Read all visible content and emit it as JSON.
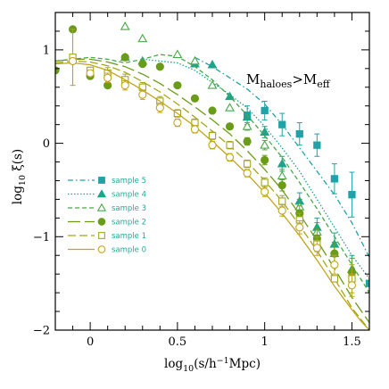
{
  "chart_data": {
    "type": "scatter",
    "xlabel_main": "log",
    "xlabel_sub": "10",
    "xlabel_rest": "(s/h",
    "xlabel_sup": "−1",
    "xlabel_end": "Mpc)",
    "ylabel_main": "log",
    "ylabel_sub": "10",
    "ylabel_rest": " ξ(s)",
    "annotation": {
      "main": "M",
      "sub1": "haloes",
      "mid": ">M",
      "sub2": "eff"
    },
    "xlim": [
      -0.2,
      1.6
    ],
    "ylim": [
      -2,
      1.4
    ],
    "x_ticks": [
      0,
      0.5,
      1,
      1.5
    ],
    "x_tick_labels": [
      "0",
      "0.5",
      "1",
      "1.5"
    ],
    "y_ticks": [
      -2,
      -1,
      0,
      1
    ],
    "y_tick_labels": [
      "−2",
      "−1",
      "0",
      "1"
    ],
    "legend_position": "lower-left",
    "series": [
      {
        "name": "sample 5",
        "color": "#1fa3a8",
        "marker": "square-filled",
        "line": "dash-dot",
        "points": [
          {
            "x": 0.9,
            "y": 0.3,
            "e": 0.1
          },
          {
            "x": 1.0,
            "y": 0.35,
            "e": 0.1
          },
          {
            "x": 1.1,
            "y": 0.2,
            "e": 0.12
          },
          {
            "x": 1.2,
            "y": 0.1,
            "e": 0.12
          },
          {
            "x": 1.3,
            "y": -0.02,
            "e": 0.12
          },
          {
            "x": 1.4,
            "y": -0.38,
            "e": 0.16
          },
          {
            "x": 1.5,
            "y": -0.55,
            "e": 0.24
          },
          {
            "x": 1.6,
            "y": -1.5,
            "e": 0.0
          }
        ],
        "model": {
          "x": [
            0.6,
            0.7,
            0.8,
            0.9,
            1.0,
            1.1,
            1.2,
            1.3,
            1.4,
            1.5,
            1.6
          ],
          "y": [
            0.92,
            0.82,
            0.7,
            0.58,
            0.42,
            0.2,
            -0.05,
            -0.3,
            -0.55,
            -0.85,
            -1.22
          ]
        }
      },
      {
        "name": "sample 4",
        "color": "#1fa38a",
        "marker": "triangle-filled",
        "line": "dotted",
        "points": [
          {
            "x": 0.2,
            "y": 0.92,
            "e": 0.0
          },
          {
            "x": 0.3,
            "y": 0.88,
            "e": 0.0
          },
          {
            "x": 0.6,
            "y": 0.85,
            "e": 0.0
          },
          {
            "x": 0.7,
            "y": 0.84,
            "e": 0.0
          },
          {
            "x": 0.8,
            "y": 0.5,
            "e": 0.0
          },
          {
            "x": 0.9,
            "y": 0.28,
            "e": 0.0
          },
          {
            "x": 1.0,
            "y": 0.12,
            "e": 0.06
          },
          {
            "x": 1.1,
            "y": -0.22,
            "e": 0.08
          },
          {
            "x": 1.2,
            "y": -0.62,
            "e": 0.09
          },
          {
            "x": 1.3,
            "y": -0.9,
            "e": 0.1
          },
          {
            "x": 1.4,
            "y": -1.08,
            "e": 0.12
          },
          {
            "x": 1.5,
            "y": -1.35,
            "e": 0.15
          }
        ],
        "model": {
          "x": [
            0.3,
            0.4,
            0.5,
            0.6,
            0.7,
            0.8,
            0.9,
            1.0,
            1.1,
            1.2,
            1.3,
            1.4,
            1.5,
            1.6
          ],
          "y": [
            0.9,
            0.88,
            0.86,
            0.78,
            0.65,
            0.52,
            0.38,
            0.18,
            -0.05,
            -0.3,
            -0.6,
            -0.9,
            -1.2,
            -1.45
          ]
        }
      },
      {
        "name": "sample 3",
        "color": "#4aa84a",
        "marker": "triangle-open",
        "line": "dashed",
        "points": [
          {
            "x": 0.2,
            "y": 1.25,
            "e": 0.0
          },
          {
            "x": 0.3,
            "y": 1.12,
            "e": 0.0
          },
          {
            "x": 0.5,
            "y": 0.95,
            "e": 0.0
          },
          {
            "x": 0.6,
            "y": 0.88,
            "e": 0.0
          },
          {
            "x": 0.7,
            "y": 0.62,
            "e": 0.0
          },
          {
            "x": 0.8,
            "y": 0.38,
            "e": 0.0
          },
          {
            "x": 0.9,
            "y": 0.18,
            "e": 0.04
          },
          {
            "x": 1.0,
            "y": -0.02,
            "e": 0.05
          },
          {
            "x": 1.1,
            "y": -0.35,
            "e": 0.07
          },
          {
            "x": 1.2,
            "y": -0.68,
            "e": 0.08
          },
          {
            "x": 1.3,
            "y": -0.95,
            "e": 0.1
          },
          {
            "x": 1.4,
            "y": -1.18,
            "e": 0.12
          }
        ],
        "model": {
          "x": [
            -0.2,
            -0.1,
            0.0,
            0.1,
            0.2,
            0.3,
            0.4,
            0.5,
            0.6,
            0.7,
            0.8,
            0.9,
            1.0,
            1.1,
            1.2,
            1.3,
            1.4,
            1.5,
            1.6
          ],
          "y": [
            0.88,
            0.9,
            0.92,
            0.9,
            0.86,
            0.9,
            0.95,
            0.93,
            0.82,
            0.68,
            0.5,
            0.3,
            0.08,
            -0.15,
            -0.42,
            -0.7,
            -1.0,
            -1.3,
            -1.6
          ]
        }
      },
      {
        "name": "sample 2",
        "color": "#6a9c1a",
        "marker": "circle-filled",
        "line": "long-dash",
        "points": [
          {
            "x": -0.2,
            "y": 0.78,
            "e": 0.0
          },
          {
            "x": -0.1,
            "y": 1.22,
            "e": 0.0
          },
          {
            "x": 0.0,
            "y": 0.72,
            "e": 0.0
          },
          {
            "x": 0.1,
            "y": 0.62,
            "e": 0.0
          },
          {
            "x": 0.2,
            "y": 0.92,
            "e": 0.0
          },
          {
            "x": 0.3,
            "y": 0.85,
            "e": 0.0
          },
          {
            "x": 0.4,
            "y": 0.82,
            "e": 0.0
          },
          {
            "x": 0.5,
            "y": 0.62,
            "e": 0.0
          },
          {
            "x": 0.6,
            "y": 0.48,
            "e": 0.0
          },
          {
            "x": 0.7,
            "y": 0.35,
            "e": 0.0
          },
          {
            "x": 0.8,
            "y": 0.18,
            "e": 0.03
          },
          {
            "x": 0.9,
            "y": 0.02,
            "e": 0.04
          },
          {
            "x": 1.0,
            "y": -0.18,
            "e": 0.05
          },
          {
            "x": 1.1,
            "y": -0.45,
            "e": 0.06
          },
          {
            "x": 1.2,
            "y": -0.75,
            "e": 0.08
          },
          {
            "x": 1.3,
            "y": -1.02,
            "e": 0.1
          },
          {
            "x": 1.4,
            "y": -1.18,
            "e": 0.12
          },
          {
            "x": 1.5,
            "y": -1.38,
            "e": 0.15
          }
        ],
        "model": {
          "x": [
            -0.2,
            -0.1,
            0.0,
            0.1,
            0.2,
            0.3,
            0.4,
            0.5,
            0.6,
            0.7,
            0.8,
            0.9,
            1.0,
            1.1,
            1.2,
            1.3,
            1.4,
            1.5,
            1.6
          ],
          "y": [
            0.88,
            0.9,
            0.9,
            0.87,
            0.82,
            0.74,
            0.64,
            0.52,
            0.39,
            0.25,
            0.1,
            -0.08,
            -0.28,
            -0.5,
            -0.76,
            -1.04,
            -1.34,
            -1.65,
            -1.92
          ]
        }
      },
      {
        "name": "sample 1",
        "color": "#a4a61a",
        "marker": "square-open",
        "line": "medium-dash",
        "points": [
          {
            "x": -0.1,
            "y": 0.92,
            "e": 0.3
          },
          {
            "x": 0.0,
            "y": 0.78,
            "e": 0.0
          },
          {
            "x": 0.1,
            "y": 0.75,
            "e": 0.06
          },
          {
            "x": 0.2,
            "y": 0.68,
            "e": 0.06
          },
          {
            "x": 0.3,
            "y": 0.6,
            "e": 0.05
          },
          {
            "x": 0.4,
            "y": 0.45,
            "e": 0.05
          },
          {
            "x": 0.5,
            "y": 0.32,
            "e": 0.04
          },
          {
            "x": 0.6,
            "y": 0.22,
            "e": 0.04
          },
          {
            "x": 0.7,
            "y": 0.08,
            "e": 0.04
          },
          {
            "x": 0.8,
            "y": -0.02,
            "e": 0.04
          },
          {
            "x": 0.9,
            "y": -0.22,
            "e": 0.04
          },
          {
            "x": 1.0,
            "y": -0.42,
            "e": 0.05
          },
          {
            "x": 1.1,
            "y": -0.62,
            "e": 0.06
          },
          {
            "x": 1.2,
            "y": -0.82,
            "e": 0.07
          },
          {
            "x": 1.3,
            "y": -1.08,
            "e": 0.08
          },
          {
            "x": 1.4,
            "y": -1.45,
            "e": 0.0
          },
          {
            "x": 1.5,
            "y": -1.45,
            "e": 0.15
          }
        ],
        "model": {
          "x": [
            -0.2,
            -0.1,
            0.0,
            0.1,
            0.2,
            0.3,
            0.4,
            0.5,
            0.6,
            0.7,
            0.8,
            0.9,
            1.0,
            1.1,
            1.2,
            1.3,
            1.4,
            1.5,
            1.6
          ],
          "y": [
            0.86,
            0.88,
            0.87,
            0.83,
            0.76,
            0.66,
            0.55,
            0.42,
            0.28,
            0.13,
            -0.03,
            -0.2,
            -0.4,
            -0.62,
            -0.88,
            -1.15,
            -1.45,
            -1.76,
            -2.0
          ]
        }
      },
      {
        "name": "sample 0",
        "color": "#c2a51a",
        "marker": "circle-open",
        "line": "solid",
        "points": [
          {
            "x": -0.1,
            "y": 0.88,
            "e": 0.0
          },
          {
            "x": 0.0,
            "y": 0.75,
            "e": 0.0
          },
          {
            "x": 0.1,
            "y": 0.7,
            "e": 0.05
          },
          {
            "x": 0.2,
            "y": 0.62,
            "e": 0.05
          },
          {
            "x": 0.3,
            "y": 0.52,
            "e": 0.05
          },
          {
            "x": 0.4,
            "y": 0.38,
            "e": 0.05
          },
          {
            "x": 0.5,
            "y": 0.22,
            "e": 0.04
          },
          {
            "x": 0.6,
            "y": 0.15,
            "e": 0.04
          },
          {
            "x": 0.7,
            "y": -0.02,
            "e": 0.04
          },
          {
            "x": 0.8,
            "y": -0.15,
            "e": 0.04
          },
          {
            "x": 0.9,
            "y": -0.32,
            "e": 0.04
          },
          {
            "x": 1.0,
            "y": -0.52,
            "e": 0.05
          },
          {
            "x": 1.1,
            "y": -0.72,
            "e": 0.06
          },
          {
            "x": 1.2,
            "y": -0.9,
            "e": 0.07
          },
          {
            "x": 1.3,
            "y": -1.12,
            "e": 0.08
          },
          {
            "x": 1.4,
            "y": -1.3,
            "e": 0.1
          },
          {
            "x": 1.5,
            "y": -1.52,
            "e": 0.12
          }
        ],
        "model": {
          "x": [
            -0.2,
            -0.1,
            0.0,
            0.1,
            0.2,
            0.3,
            0.4,
            0.5,
            0.6,
            0.7,
            0.8,
            0.9,
            1.0,
            1.1,
            1.2,
            1.3,
            1.4,
            1.5,
            1.55,
            1.6
          ],
          "y": [
            0.85,
            0.86,
            0.84,
            0.78,
            0.68,
            0.57,
            0.45,
            0.32,
            0.18,
            0.02,
            -0.15,
            -0.33,
            -0.53,
            -0.75,
            -0.99,
            -1.25,
            -1.53,
            -1.78,
            -1.9,
            -2.0
          ]
        }
      }
    ]
  }
}
